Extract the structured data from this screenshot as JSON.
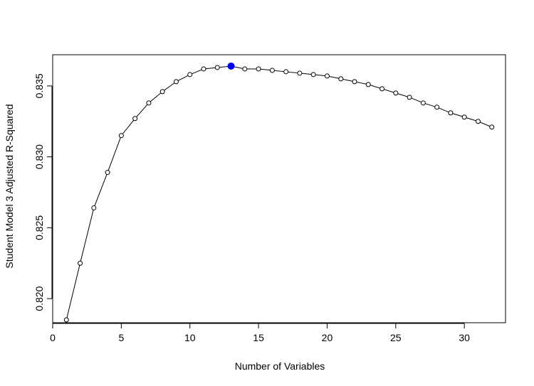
{
  "chart_data": {
    "type": "line",
    "title": "",
    "xlabel": "Number of Variables",
    "ylabel": "Student Model 3 Adjusted R-Squared",
    "xlim": [
      0,
      33
    ],
    "ylim": [
      0.8183,
      0.8372
    ],
    "xticks": [
      0,
      5,
      10,
      15,
      20,
      25,
      30
    ],
    "yticks": [
      0.82,
      0.825,
      0.83,
      0.835
    ],
    "ytick_labels": [
      "0.820",
      "0.825",
      "0.830",
      "0.835"
    ],
    "grid": false,
    "series": [
      {
        "x": [
          1,
          2,
          3,
          4,
          5,
          6,
          7,
          8,
          9,
          10,
          11,
          12,
          13,
          14,
          15,
          16,
          17,
          18,
          19,
          20,
          21,
          22,
          23,
          24,
          25,
          26,
          27,
          28,
          29,
          30,
          31,
          32
        ],
        "y": [
          0.8185,
          0.8225,
          0.8264,
          0.8289,
          0.8315,
          0.8327,
          0.8338,
          0.8346,
          0.8353,
          0.8358,
          0.8362,
          0.8363,
          0.8364,
          0.8362,
          0.8362,
          0.8361,
          0.836,
          0.8359,
          0.8358,
          0.8357,
          0.8355,
          0.8353,
          0.8351,
          0.8348,
          0.8345,
          0.8342,
          0.8338,
          0.8335,
          0.8331,
          0.8328,
          0.8325,
          0.8321
        ],
        "color": "#000000",
        "marker": "open-circle",
        "highlight": {
          "x": 13,
          "y": 0.8364,
          "color": "#0000ff"
        }
      }
    ]
  }
}
